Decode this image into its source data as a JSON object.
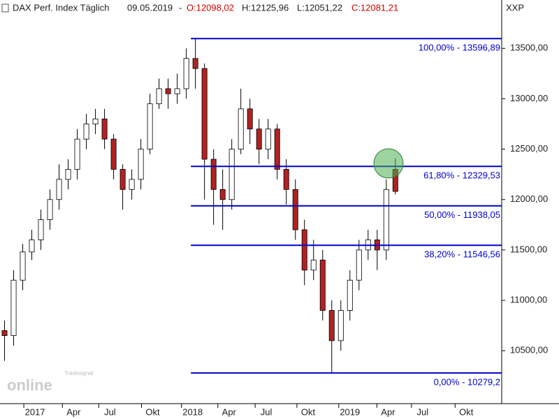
{
  "chart_data": {
    "type": "candlestick",
    "title": "DAX Perf. Index Täglich",
    "date": "09.05.2019",
    "quote": {
      "open": "O:12098,02",
      "high": "H:12125,96",
      "low": "L:12051,22",
      "close": "C:12081,21"
    },
    "symbol": "XXP",
    "watermark": {
      "brand": "Tradesignal",
      "name": "online"
    },
    "up_color": "#ffffff",
    "down_color": "#b22222",
    "level_color": "#0000cc",
    "open": [
      10700,
      10650,
      11200,
      11480,
      11600,
      11800,
      12000,
      12200,
      12300,
      12600,
      12750,
      12800,
      12600,
      12300,
      12100,
      12200,
      12500,
      12950,
      13100,
      13050,
      13100,
      13400,
      13300,
      12400,
      12100,
      12000,
      12500,
      12900,
      12700,
      12500,
      12700,
      12300,
      12100,
      11700,
      11300,
      11400,
      10900,
      10600,
      10900,
      11200,
      11500,
      11600,
      11500,
      12300
    ],
    "high": [
      10800,
      11300,
      11560,
      11700,
      11900,
      12100,
      12350,
      12400,
      12700,
      12850,
      12900,
      12900,
      12650,
      12350,
      12300,
      12600,
      13050,
      13200,
      13200,
      13250,
      13500,
      13597,
      13350,
      12500,
      12300,
      12600,
      13100,
      13000,
      12800,
      12800,
      12750,
      12400,
      12200,
      11800,
      11600,
      11500,
      11000,
      11000,
      11300,
      11600,
      11700,
      11700,
      12200,
      12410
    ],
    "low": [
      10400,
      10550,
      11100,
      11400,
      11500,
      11700,
      11900,
      12100,
      12200,
      12500,
      12650,
      12500,
      12200,
      11900,
      12000,
      12100,
      12450,
      12900,
      12900,
      12950,
      13000,
      13100,
      12000,
      11750,
      11700,
      11900,
      12450,
      12550,
      12350,
      12400,
      12200,
      11950,
      11600,
      11150,
      11200,
      10800,
      10279,
      10500,
      10800,
      11100,
      11400,
      11300,
      11400,
      12051
    ],
    "close": [
      10650,
      11200,
      11480,
      11600,
      11800,
      12000,
      12200,
      12300,
      12600,
      12750,
      12800,
      12600,
      12300,
      12100,
      12200,
      12500,
      12950,
      13100,
      13050,
      13100,
      13400,
      13300,
      12400,
      12100,
      12000,
      12500,
      12900,
      12700,
      12500,
      12700,
      12300,
      12100,
      11700,
      11300,
      11400,
      10900,
      10600,
      10900,
      11200,
      11500,
      11600,
      11500,
      12100,
      12081
    ],
    "levels": [
      {
        "value": 13596.89,
        "label": "100,00% - 13596,89"
      },
      {
        "value": 12329.53,
        "label": "61,80% - 12329,53"
      },
      {
        "value": 11938.05,
        "label": "50,00% - 11938,05"
      },
      {
        "value": 11546.56,
        "label": "38,20% - 11546,56"
      },
      {
        "value": 10279.2,
        "label": "0,00% - 10279,2"
      }
    ],
    "levels_start": 21,
    "xlim": [
      0,
      55.2
    ],
    "xticks": [
      {
        "value": 3.85,
        "label": "2017"
      },
      {
        "value": 8.1,
        "label": "Apr"
      },
      {
        "value": 12.1,
        "label": "Jul"
      },
      {
        "value": 16.8,
        "label": "Okt"
      },
      {
        "value": 21.2,
        "label": "2018"
      },
      {
        "value": 25.2,
        "label": "Apr"
      },
      {
        "value": 29.3,
        "label": "Jul"
      },
      {
        "value": 33.9,
        "label": "Okt"
      },
      {
        "value": 38.5,
        "label": "2019"
      },
      {
        "value": 42.7,
        "label": "Apr"
      },
      {
        "value": 46.5,
        "label": "Jul"
      },
      {
        "value": 51.3,
        "label": "Okt"
      }
    ],
    "ylim": [
      9975,
      13980
    ],
    "yticks": [
      {
        "value": 10500,
        "label": "10500,00"
      },
      {
        "value": 11000,
        "label": "11000,00"
      },
      {
        "value": 11500,
        "label": "11500,00"
      },
      {
        "value": 12000,
        "label": "12000,00"
      },
      {
        "value": 12500,
        "label": "12500,00"
      },
      {
        "value": 13000,
        "label": "13000,00"
      },
      {
        "value": 13500,
        "label": "13500,00"
      }
    ]
  }
}
